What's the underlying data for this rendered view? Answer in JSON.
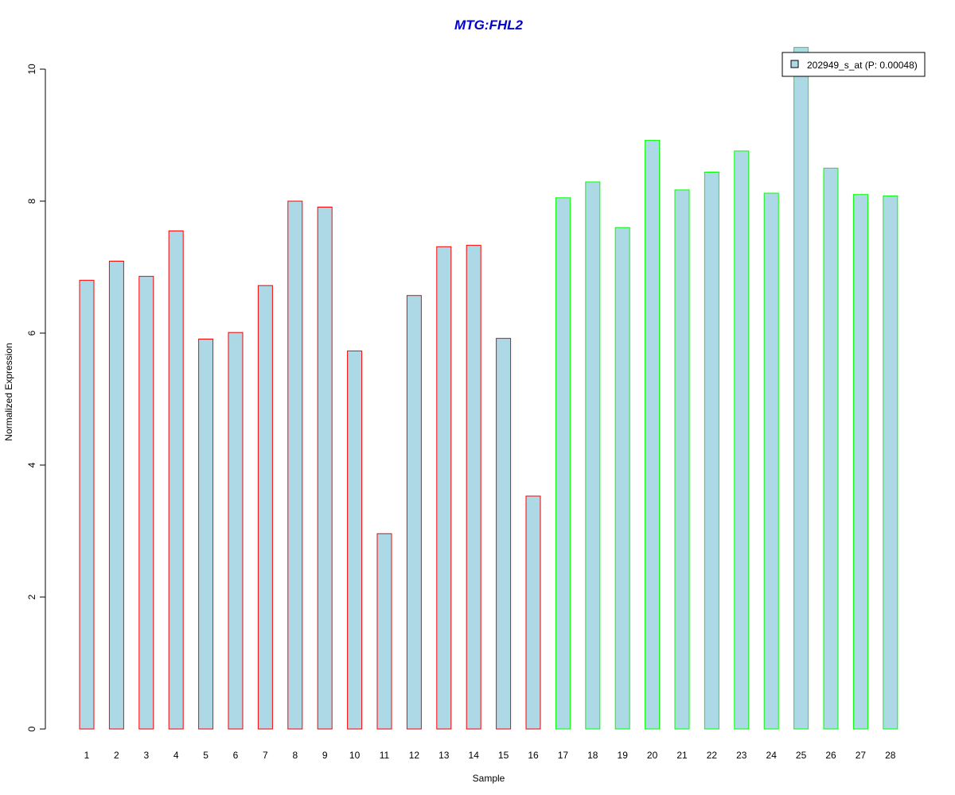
{
  "chart_data": {
    "type": "bar",
    "title": "MTG:FHL2",
    "xlabel": "Sample",
    "ylabel": "Normalized Expression",
    "ylim": [
      0,
      10
    ],
    "yticks": [
      0,
      2,
      4,
      6,
      8,
      10
    ],
    "grid": false,
    "legend_position": "top-right",
    "colors": {
      "title": "#0000cc",
      "bar_fill": "#add8e6",
      "group_1_border": "#ff0000",
      "group_2_border": "#00ff00",
      "axis": "#000000"
    },
    "categories": [
      "1",
      "2",
      "3",
      "4",
      "5",
      "6",
      "7",
      "8",
      "9",
      "10",
      "11",
      "12",
      "13",
      "14",
      "15",
      "16",
      "17",
      "18",
      "19",
      "20",
      "21",
      "22",
      "23",
      "24",
      "25",
      "26",
      "27",
      "28"
    ],
    "series": [
      {
        "name": "202949_s_at (P: 0.00048)",
        "values": [
          6.8,
          7.09,
          6.86,
          7.55,
          5.91,
          6.01,
          6.72,
          8.0,
          7.91,
          5.73,
          2.96,
          6.57,
          7.31,
          7.33,
          5.92,
          3.53,
          8.05,
          8.29,
          7.6,
          8.92,
          8.17,
          8.44,
          8.76,
          8.12,
          10.33,
          8.5,
          8.1,
          8.08
        ],
        "groups": [
          1,
          1,
          1,
          1,
          1,
          1,
          1,
          1,
          1,
          1,
          1,
          1,
          1,
          1,
          1,
          1,
          2,
          2,
          2,
          2,
          2,
          2,
          2,
          2,
          2,
          2,
          2,
          2
        ]
      }
    ]
  }
}
